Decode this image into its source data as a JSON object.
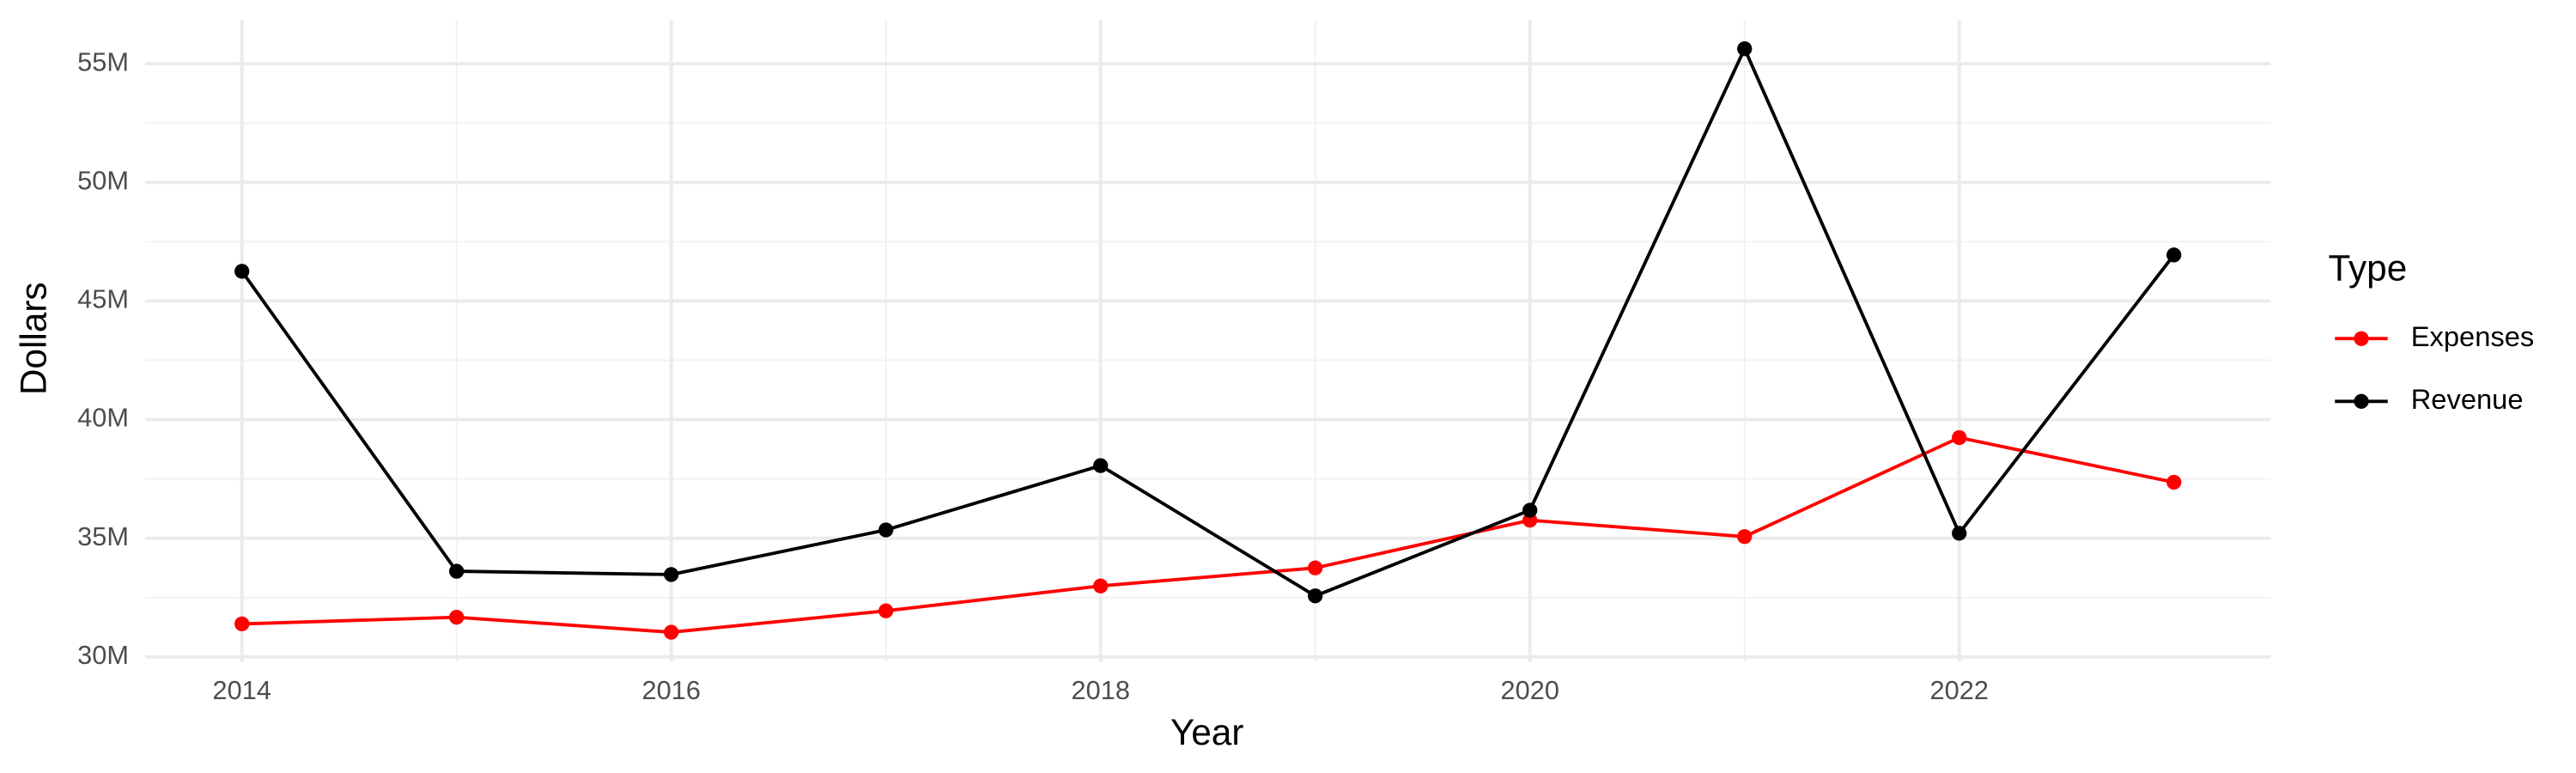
{
  "chart_data": {
    "type": "line",
    "x_label": "Year",
    "y_label": "Dollars",
    "x": [
      2014,
      2015,
      2016,
      2017,
      2018,
      2019,
      2020,
      2021,
      2022,
      2023
    ],
    "series": [
      {
        "name": "Expenses",
        "color": "#ff0000",
        "values": [
          31390000,
          31670000,
          31040000,
          31940000,
          32990000,
          33750000,
          35760000,
          35070000,
          39240000,
          37360000
        ]
      },
      {
        "name": "Revenue",
        "color": "#000000",
        "values": [
          46250000,
          33610000,
          33470000,
          35350000,
          38060000,
          32570000,
          36180000,
          55630000,
          35210000,
          46940000
        ]
      }
    ],
    "xlim": [
      2013.55,
      2023.45
    ],
    "xticks": [
      2014,
      2016,
      2018,
      2020,
      2022
    ],
    "ylim": [
      29770000,
      56850000
    ],
    "yticks": [
      {
        "value": 30000000,
        "label": "30M"
      },
      {
        "value": 35000000,
        "label": "35M"
      },
      {
        "value": 40000000,
        "label": "40M"
      },
      {
        "value": 45000000,
        "label": "45M"
      },
      {
        "value": 50000000,
        "label": "50M"
      },
      {
        "value": 55000000,
        "label": "55M"
      }
    ],
    "grid": true,
    "legend_title": "Type",
    "legend_position": "right"
  }
}
